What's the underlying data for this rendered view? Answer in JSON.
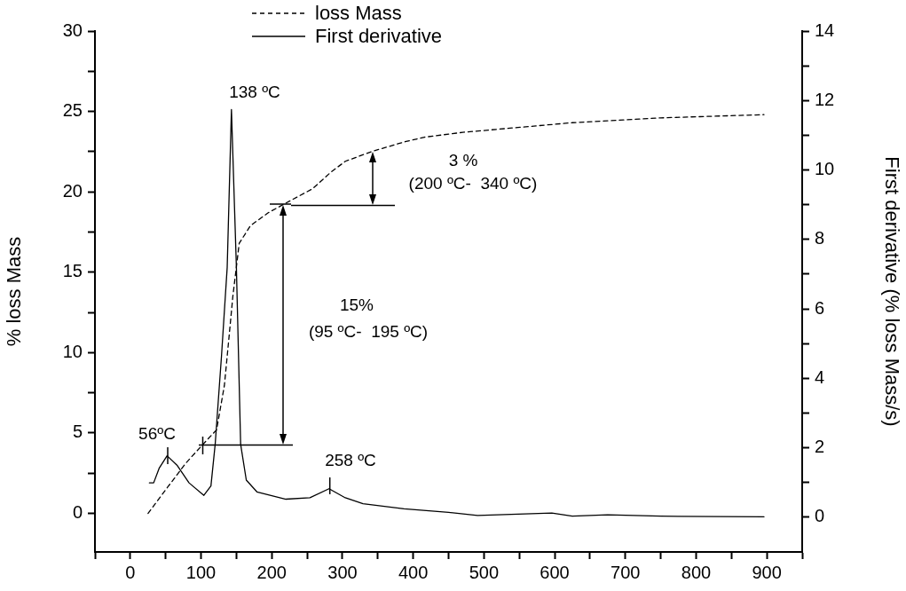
{
  "chart_data": {
    "type": "line",
    "ylabel": "% loss Mass",
    "y2label": "First derivative (% loss Mass/s)",
    "xlim": [
      -50,
      950
    ],
    "xticks": [
      {
        "value": -50,
        "label": null
      },
      0,
      {
        "value": 50,
        "label": null
      },
      100,
      {
        "value": 150,
        "label": null
      },
      200,
      {
        "value": 250,
        "label": null
      },
      300,
      {
        "value": 350,
        "label": null
      },
      400,
      {
        "value": 450,
        "label": null
      },
      500,
      {
        "value": 550,
        "label": null
      },
      600,
      {
        "value": 650,
        "label": null
      },
      700,
      {
        "value": 750,
        "label": null
      },
      800,
      {
        "value": 850,
        "label": null
      },
      900,
      {
        "value": 950,
        "label": null
      }
    ],
    "ylim": [
      -2.4,
      30
    ],
    "yticks": [
      0,
      {
        "value": 2.5,
        "label": null
      },
      5,
      {
        "value": 7.5,
        "label": null
      },
      10,
      {
        "value": 12.5,
        "label": null
      },
      15,
      {
        "value": 17.5,
        "label": null
      },
      20,
      {
        "value": 22.5,
        "label": null
      },
      25,
      {
        "value": 27.5,
        "label": null
      },
      30
    ],
    "y2lim": [
      -1,
      14
    ],
    "y2ticks": [
      0,
      {
        "value": 1,
        "label": null
      },
      2,
      {
        "value": 3,
        "label": null
      },
      4,
      {
        "value": 5,
        "label": null
      },
      6,
      {
        "value": 7,
        "label": null
      },
      8,
      {
        "value": 9,
        "label": null
      },
      10,
      {
        "value": 11,
        "label": null
      },
      12,
      {
        "value": 13,
        "label": null
      },
      14
    ],
    "legend": "top",
    "grid": false,
    "marker": "none",
    "series": [
      {
        "name": "loss Mass",
        "color": "#000000",
        "line_style": "dashed",
        "x": [
          25,
          54,
          79,
          102,
          122,
          133,
          139,
          145,
          154,
          170,
          195,
          220,
          258,
          283,
          304,
          341,
          387,
          416,
          470,
          625,
          750,
          896
        ],
        "values": [
          0,
          1.7,
          3.15,
          4.26,
          5.2,
          7.95,
          10.7,
          13.5,
          16.8,
          17.9,
          18.7,
          19.3,
          20.2,
          21.2,
          21.9,
          22.5,
          23.1,
          23.4,
          23.7,
          24.3,
          24.6,
          24.8
        ]
      },
      {
        "name": "First derivative",
        "color": "#000000",
        "line_style": "solid",
        "axis": "y2",
        "x": [
          27,
          33,
          41,
          52,
          66,
          83,
          104,
          114,
          120,
          129,
          137,
          143,
          150,
          156,
          164,
          179,
          220,
          254,
          281,
          304,
          329,
          387,
          450,
          491,
          596,
          625,
          675,
          750,
          896
        ],
        "values": [
          0.99,
          0.99,
          1.42,
          1.77,
          1.5,
          0.99,
          0.63,
          0.9,
          2.1,
          4.66,
          7.2,
          11.74,
          7.2,
          2.1,
          1.07,
          0.73,
          0.52,
          0.56,
          0.82,
          0.56,
          0.39,
          0.24,
          0.14,
          0.05,
          0.12,
          0.03,
          0.07,
          0.03,
          0.01
        ]
      }
    ],
    "annotations": [
      "138 ºC",
      "56ºC",
      "258 ºC",
      "15%",
      "(95 ºC-  195 ºC)",
      "3 %",
      "(200 ºC-  340 ºC)"
    ]
  }
}
